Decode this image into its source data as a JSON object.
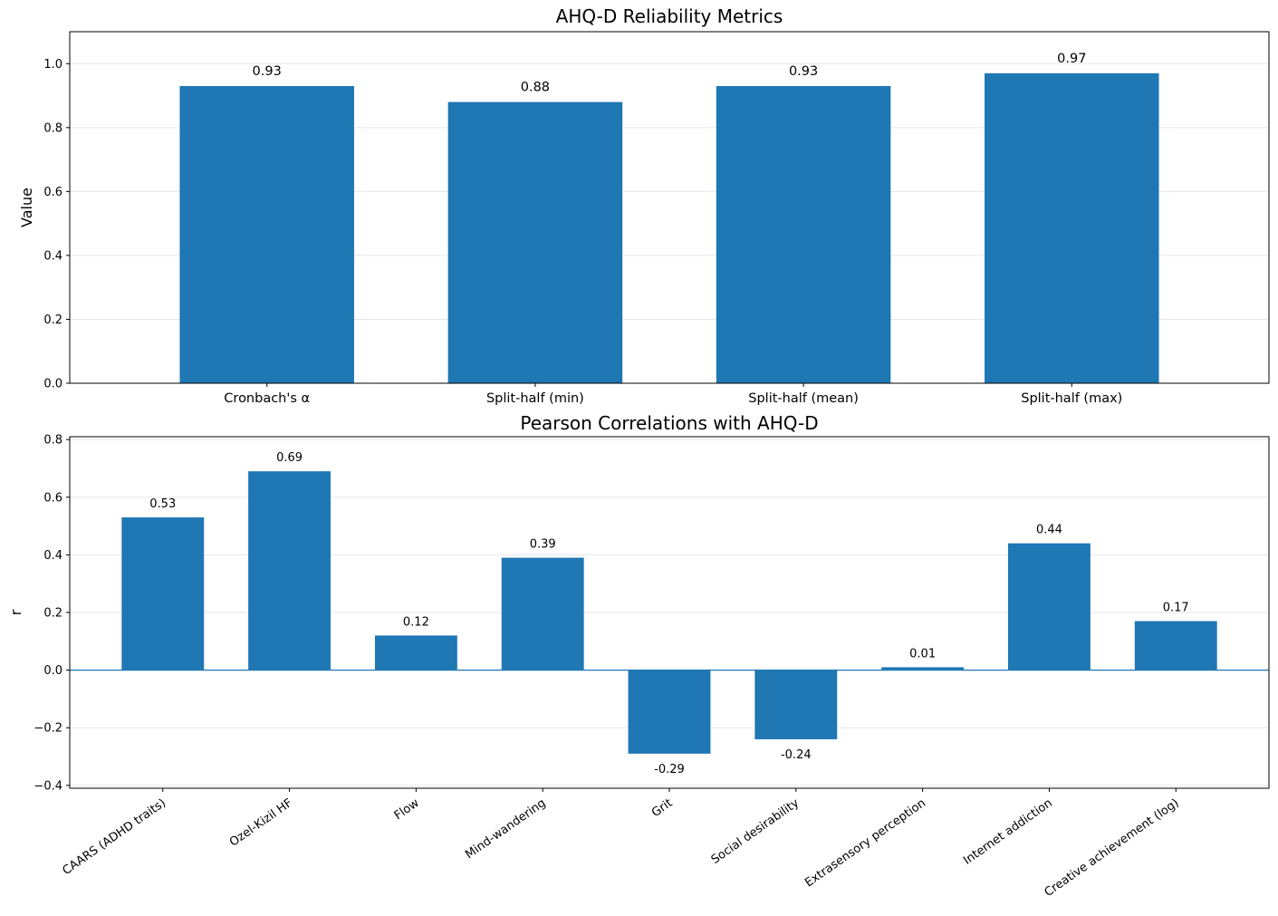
{
  "chart_data": [
    {
      "type": "bar",
      "title": "AHQ-D Reliability Metrics",
      "xlabel": "",
      "ylabel": "Value",
      "categories": [
        "Cronbach's α",
        "Split-half (min)",
        "Split-half (mean)",
        "Split-half (max)"
      ],
      "values": [
        0.93,
        0.88,
        0.93,
        0.97
      ],
      "value_labels": [
        "0.93",
        "0.88",
        "0.93",
        "0.97"
      ],
      "ylim": [
        0,
        1.1
      ],
      "yticks": [
        0.0,
        0.2,
        0.4,
        0.6,
        0.8,
        1.0
      ],
      "ytick_labels": [
        "0.0",
        "0.2",
        "0.4",
        "0.6",
        "0.8",
        "1.0"
      ],
      "grid": "y",
      "bar_color": "#1f77b4"
    },
    {
      "type": "bar",
      "title": "Pearson Correlations with AHQ-D",
      "xlabel": "",
      "ylabel": "r",
      "categories": [
        "CAARS (ADHD traits)",
        "Ozel-Kizil HF",
        "Flow",
        "Mind-wandering",
        "Grit",
        "Social desirability",
        "Extrasensory perception",
        "Internet addiction",
        "Creative achievement (log)"
      ],
      "values": [
        0.53,
        0.69,
        0.12,
        0.39,
        -0.29,
        -0.24,
        0.01,
        0.44,
        0.17
      ],
      "value_labels": [
        "0.53",
        "0.69",
        "0.12",
        "0.39",
        "-0.29",
        "-0.24",
        "0.01",
        "0.44",
        "0.17"
      ],
      "ylim": [
        -0.41,
        0.81
      ],
      "yticks": [
        -0.4,
        -0.2,
        0.0,
        0.2,
        0.4,
        0.6,
        0.8
      ],
      "ytick_labels": [
        "−0.4",
        "−0.2",
        "0.0",
        "0.2",
        "0.4",
        "0.6",
        "0.8"
      ],
      "grid": "y",
      "zero_line": true,
      "bar_color": "#1f77b4"
    }
  ]
}
